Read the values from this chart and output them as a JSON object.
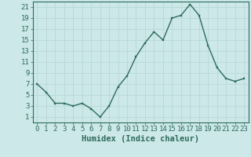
{
  "x": [
    0,
    1,
    2,
    3,
    4,
    5,
    6,
    7,
    8,
    9,
    10,
    11,
    12,
    13,
    14,
    15,
    16,
    17,
    18,
    19,
    20,
    21,
    22,
    23
  ],
  "y": [
    7,
    5.5,
    3.5,
    3.5,
    3,
    3.5,
    2.5,
    1,
    3,
    6.5,
    8.5,
    12,
    14.5,
    16.5,
    15,
    19,
    19.5,
    21.5,
    19.5,
    14,
    10,
    8,
    7.5,
    8
  ],
  "line_color": "#2e6b5e",
  "marker_color": "#2e6b5e",
  "bg_color": "#cce8e8",
  "grid_color": "#b8d8d8",
  "xlabel": "Humidex (Indice chaleur)",
  "ylim": [
    0,
    22
  ],
  "xlim": [
    -0.5,
    23.5
  ],
  "yticks": [
    1,
    3,
    5,
    7,
    9,
    11,
    13,
    15,
    17,
    19,
    21
  ],
  "xtick_labels": [
    "0",
    "1",
    "2",
    "3",
    "4",
    "5",
    "6",
    "7",
    "8",
    "9",
    "10",
    "11",
    "12",
    "13",
    "14",
    "15",
    "16",
    "17",
    "18",
    "19",
    "20",
    "21",
    "22",
    "23"
  ],
  "label_fontsize": 7.5,
  "tick_fontsize": 6.5
}
